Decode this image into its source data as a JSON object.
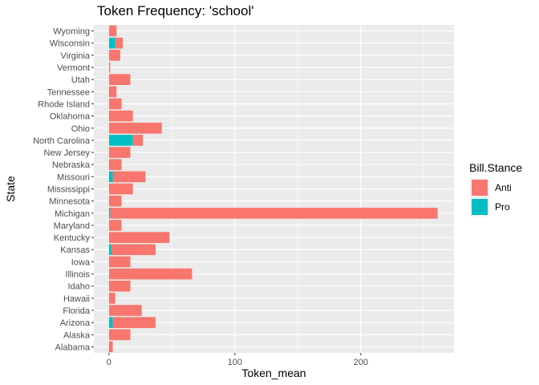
{
  "chart_data": {
    "type": "bar",
    "orientation": "horizontal",
    "stacked": true,
    "title": "Token Frequency: 'school'",
    "xlabel": "Token_mean",
    "ylabel": "State",
    "xlim": [
      -12,
      274
    ],
    "xticks": [
      0,
      100,
      200
    ],
    "grid": true,
    "legend": {
      "title": "Bill.Stance",
      "position": "right"
    },
    "categories": [
      "Wyoming",
      "Wisconsin",
      "Virginia",
      "Vermont",
      "Utah",
      "Tennessee",
      "Rhode Island",
      "Oklahoma",
      "Ohio",
      "North Carolina",
      "New Jersey",
      "Nebraska",
      "Missouri",
      "Mississippi",
      "Minnesota",
      "Michigan",
      "Maryland",
      "Kentucky",
      "Kansas",
      "Iowa",
      "Illinois",
      "Idaho",
      "Hawaii",
      "Florida",
      "Arizona",
      "Alaska",
      "Alabama"
    ],
    "series": [
      {
        "name": "Anti",
        "color": "#F8766D",
        "values": [
          6,
          6,
          9,
          1,
          17,
          6,
          10,
          19,
          42,
          8,
          17,
          10,
          26,
          19,
          10,
          260,
          10,
          48,
          35,
          17,
          66,
          17,
          5,
          26,
          34,
          17,
          3
        ]
      },
      {
        "name": "Pro",
        "color": "#00BFC4",
        "values": [
          0,
          5,
          0,
          0,
          0,
          0,
          0,
          0,
          0,
          19,
          0,
          0,
          3,
          0,
          0,
          1,
          0,
          0,
          2,
          0,
          0,
          0,
          0,
          0,
          3,
          0,
          0
        ]
      }
    ]
  }
}
